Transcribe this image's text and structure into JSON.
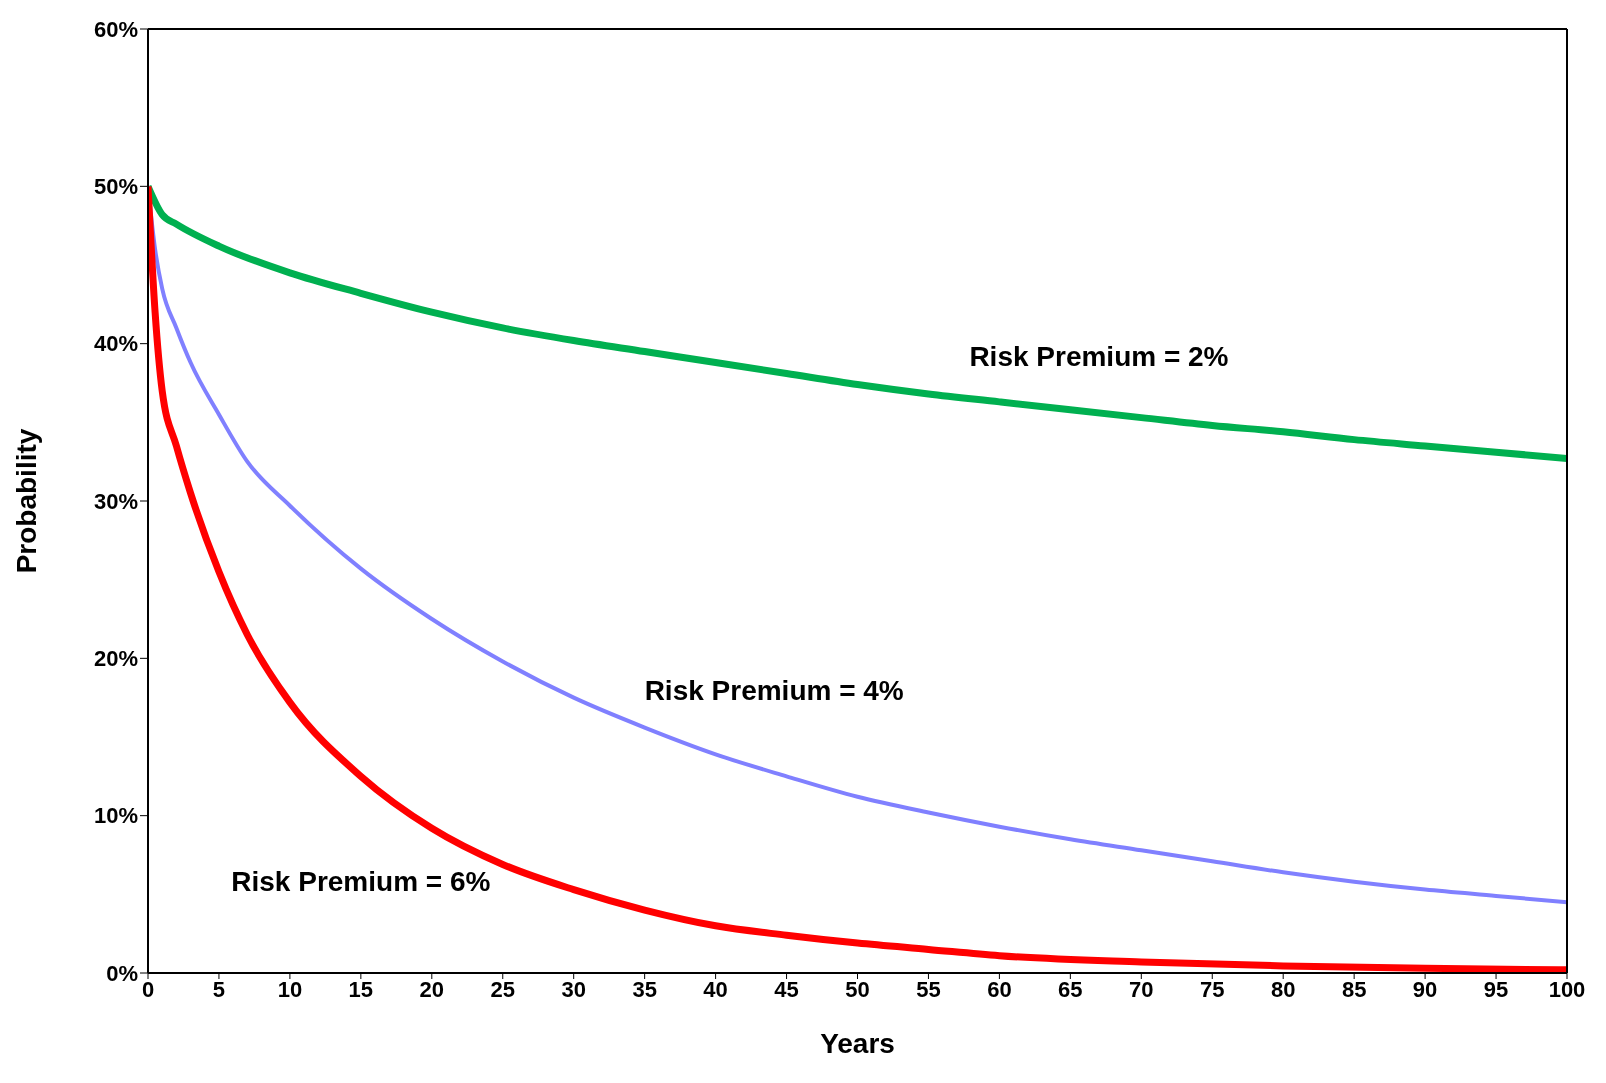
{
  "chart_data": {
    "type": "line",
    "xlabel": "Years",
    "ylabel": "Probability",
    "xlim": [
      0,
      100
    ],
    "xticks": [
      0,
      5,
      10,
      15,
      20,
      25,
      30,
      35,
      40,
      45,
      50,
      55,
      60,
      65,
      70,
      75,
      80,
      85,
      90,
      95,
      100
    ],
    "ylim": [
      0,
      60
    ],
    "yticks": [
      {
        "value": 0,
        "label": "0%"
      },
      {
        "value": 10,
        "label": "10%"
      },
      {
        "value": 20,
        "label": "20%"
      },
      {
        "value": 30,
        "label": "30%"
      },
      {
        "value": 40,
        "label": "40%"
      },
      {
        "value": 50,
        "label": "50%"
      },
      {
        "value": 60,
        "label": "60%"
      }
    ],
    "grid": false,
    "legend": false,
    "marker": "none",
    "line_style": "solid",
    "series": [
      {
        "name": "Risk Premium = 2%",
        "color": "#00b050",
        "x": [
          0,
          1,
          2,
          5,
          10,
          15,
          20,
          25,
          30,
          35,
          40,
          45,
          50,
          55,
          60,
          65,
          70,
          75,
          80,
          85,
          90,
          95,
          100
        ],
        "values": [
          50,
          48.2,
          47.6,
          46.2,
          44.5,
          43.2,
          42,
          41,
          40.2,
          39.5,
          38.8,
          38.1,
          37.4,
          36.8,
          36.3,
          35.8,
          35.3,
          34.8,
          34.4,
          33.9,
          33.5,
          33.1,
          32.7
        ]
      },
      {
        "name": "Risk Premium = 4%",
        "color": "#8080ff",
        "x": [
          0,
          0.5,
          1,
          2,
          3,
          5,
          7,
          10,
          15,
          20,
          25,
          30,
          35,
          40,
          45,
          50,
          55,
          60,
          65,
          70,
          75,
          80,
          85,
          90,
          95,
          100
        ],
        "values": [
          50,
          46,
          43.5,
          41,
          38.8,
          35.5,
          32.5,
          29.7,
          25.7,
          22.5,
          19.8,
          17.5,
          15.6,
          13.9,
          12.5,
          11.2,
          10.2,
          9.3,
          8.5,
          7.8,
          7.1,
          6.4,
          5.8,
          5.3,
          4.9,
          4.5
        ]
      },
      {
        "name": "Risk Premium = 6%",
        "color": "#ff0000",
        "x": [
          0,
          0.5,
          1,
          2,
          3,
          5,
          7,
          10,
          15,
          20,
          25,
          30,
          35,
          40,
          45,
          50,
          55,
          60,
          70,
          80,
          90,
          100
        ],
        "values": [
          50,
          42,
          37,
          33.5,
          30.5,
          25.5,
          21.5,
          17.2,
          12.5,
          9.2,
          6.9,
          5.3,
          4,
          3,
          2.4,
          1.9,
          1.5,
          1.1,
          0.7,
          0.45,
          0.3,
          0.2
        ]
      }
    ]
  }
}
